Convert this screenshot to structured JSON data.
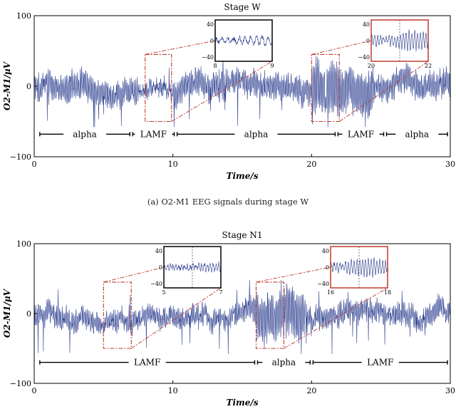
{
  "chart_data": [
    {
      "type": "line",
      "id": "top",
      "title": "Stage W",
      "xlabel": "Time/s",
      "ylabel": "O2-M1/μV",
      "xlim": [
        0,
        30
      ],
      "ylim": [
        -100,
        100
      ],
      "xticks": [
        0,
        10,
        20,
        30
      ],
      "yticks": [
        -100,
        0,
        100
      ],
      "xtick_labels": [
        "0",
        "10",
        "20",
        "30"
      ],
      "ytick_labels": [
        "−100",
        "0",
        "100"
      ],
      "caption": "(a)  O2-M1 EEG signals during stage W",
      "signal_color": "#2c3e8f",
      "segments": [
        {
          "label": "alpha",
          "start": 0.3,
          "end": 7.0
        },
        {
          "label": "LAMF",
          "start": 7.0,
          "end": 10.2
        },
        {
          "label": "alpha",
          "start": 10.2,
          "end": 21.8
        },
        {
          "label": "LAMF",
          "start": 21.8,
          "end": 25.3
        },
        {
          "label": "alpha",
          "start": 25.3,
          "end": 29.9
        }
      ],
      "insets": [
        {
          "box_start": 8.0,
          "box_end": 9.9,
          "xlim": [
            8,
            9
          ],
          "xticks": [
            8,
            9
          ],
          "xtick_labels": [
            "8",
            "9"
          ],
          "yticks": [
            -40,
            0,
            40
          ],
          "ytick_labels": [
            "−40",
            "0",
            "40"
          ],
          "dashed_x": [
            8.0,
            9.0
          ],
          "border": "#000000"
        },
        {
          "box_start": 20.0,
          "box_end": 22.0,
          "xlim": [
            20,
            22
          ],
          "xticks": [
            20,
            22
          ],
          "xtick_labels": [
            "20",
            "22"
          ],
          "yticks": [
            -40,
            0,
            40
          ],
          "ytick_labels": [
            "−40",
            "0",
            "40"
          ],
          "dashed_x": [
            21.0
          ],
          "border": "#c0392b"
        }
      ]
    },
    {
      "type": "line",
      "id": "bottom",
      "title": "Stage N1",
      "xlabel": "Time/s",
      "ylabel": "O2-M1/μV",
      "xlim": [
        0,
        30
      ],
      "ylim": [
        -100,
        100
      ],
      "xticks": [
        0,
        10,
        20,
        30
      ],
      "yticks": [
        -100,
        0,
        100
      ],
      "xtick_labels": [
        "0",
        "10",
        "20",
        "30"
      ],
      "ytick_labels": [
        "−100",
        "0",
        "100"
      ],
      "signal_color": "#2c3e8f",
      "segments": [
        {
          "label": "LAMF",
          "start": 0.3,
          "end": 16.0
        },
        {
          "label": "alpha",
          "start": 16.0,
          "end": 20.0
        },
        {
          "label": "LAMF",
          "start": 20.0,
          "end": 29.9
        }
      ],
      "insets": [
        {
          "box_start": 5.0,
          "box_end": 7.0,
          "xlim": [
            5,
            7
          ],
          "xticks": [
            5,
            7
          ],
          "xtick_labels": [
            "5",
            "7"
          ],
          "yticks": [
            -40,
            0,
            40
          ],
          "ytick_labels": [
            "−40",
            "0",
            "40"
          ],
          "dashed_x": [
            6.0
          ],
          "border": "#000000"
        },
        {
          "box_start": 16.0,
          "box_end": 18.0,
          "xlim": [
            16,
            18
          ],
          "xticks": [
            16,
            18
          ],
          "xtick_labels": [
            "16",
            "18"
          ],
          "yticks": [
            -40,
            0,
            40
          ],
          "ytick_labels": [
            "−40",
            "0",
            "40"
          ],
          "dashed_x": [
            17.0
          ],
          "border": "#c0392b"
        }
      ]
    }
  ]
}
